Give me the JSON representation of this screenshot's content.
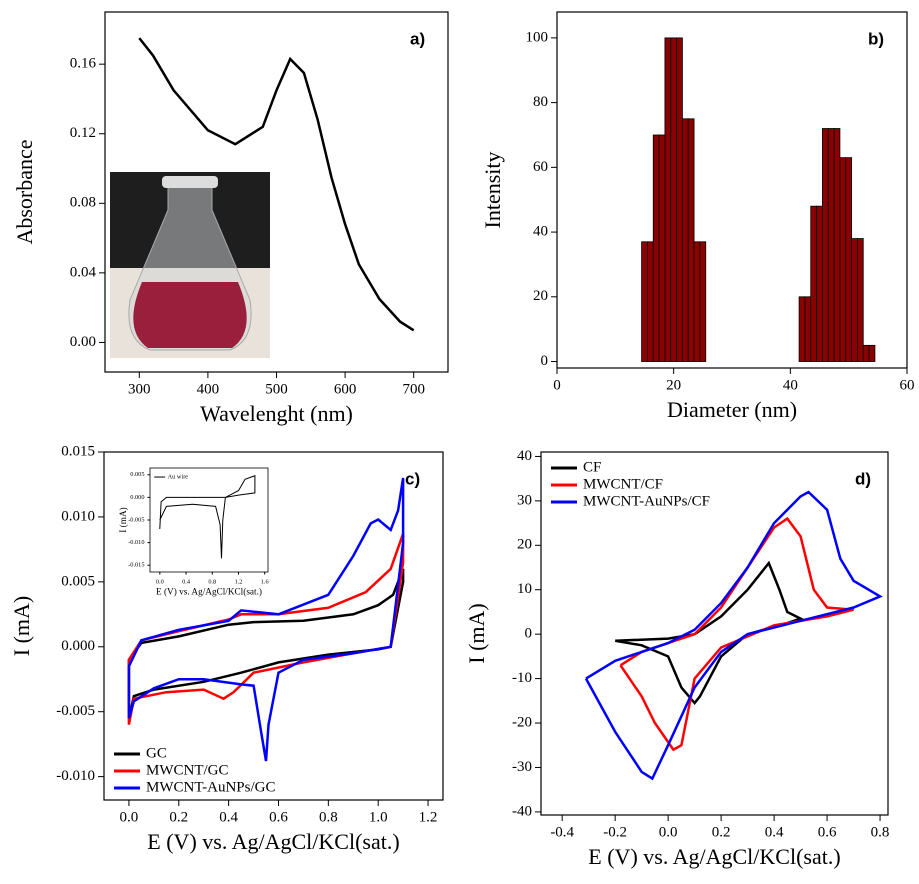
{
  "chart_data": [
    {
      "type": "line",
      "panel_label": "a)",
      "xlabel": "Wavelenght (nm)",
      "ylabel": "Absorbance",
      "color": "#000000",
      "x": [
        300,
        320,
        350,
        400,
        440,
        480,
        500,
        520,
        540,
        560,
        580,
        600,
        620,
        650,
        680,
        700
      ],
      "values": [
        0.175,
        0.165,
        0.145,
        0.122,
        0.114,
        0.124,
        0.145,
        0.163,
        0.155,
        0.128,
        0.095,
        0.068,
        0.045,
        0.025,
        0.012,
        0.007
      ],
      "xlim": [
        250,
        750
      ],
      "xticks": [
        300,
        400,
        500,
        600,
        700
      ],
      "ylim": [
        -0.017,
        0.19
      ],
      "yticks": [
        {
          "value": 0,
          "label": "0.00"
        },
        0.04,
        0.08,
        0.12,
        0.16
      ]
    },
    {
      "type": "bar",
      "panel_label": "b)",
      "xlabel": "Diameter (nm)",
      "ylabel": "Intensity",
      "color": "#8b0000",
      "x": [
        15,
        16,
        17,
        18,
        19,
        20,
        21,
        22,
        23,
        24,
        25,
        42,
        43,
        44,
        45,
        46,
        47,
        48,
        49,
        50,
        51,
        52,
        53,
        54
      ],
      "values": [
        37,
        37,
        70,
        70,
        100,
        100,
        100,
        75,
        75,
        37,
        37,
        20,
        20,
        48,
        48,
        72,
        72,
        72,
        63,
        63,
        38,
        38,
        5,
        5
      ],
      "xlim": [
        0,
        60
      ],
      "xticks": [
        0,
        20,
        40,
        60
      ],
      "ylim": [
        -2,
        108
      ],
      "yticks": [
        0,
        20,
        40,
        60,
        80,
        100
      ]
    },
    {
      "type": "line",
      "panel_label": "c)",
      "xlabel": "E (V) vs. Ag/AgCl/KCl(sat.)",
      "ylabel": "I (mA)",
      "legend": "lower left",
      "xlim": [
        -0.1,
        1.26
      ],
      "xticks": [
        {
          "value": 0,
          "label": "0.0"
        },
        0.2,
        0.4,
        0.6,
        0.8,
        {
          "value": 1,
          "label": "1.0"
        },
        1.2
      ],
      "ylim": [
        -0.0118,
        0.015
      ],
      "yticks": [
        {
          "value": -0.01,
          "label": "-0.010"
        },
        -0.005,
        {
          "value": 0,
          "label": "0.000"
        },
        0.005,
        {
          "value": 0.01,
          "label": "0.010"
        },
        0.015
      ],
      "series": [
        {
          "name": "GC",
          "color": "#000000",
          "x": [
            0,
            0,
            0.05,
            0.2,
            0.4,
            0.5,
            0.7,
            0.9,
            1.0,
            1.06,
            1.1,
            1.1,
            1.05,
            1.0,
            0.8,
            0.6,
            0.45,
            0.3,
            0.1,
            0.02,
            0
          ],
          "values": [
            -0.0045,
            -0.001,
            0.0003,
            0.0008,
            0.0017,
            0.0019,
            0.002,
            0.0025,
            0.0032,
            0.004,
            0.006,
            0.005,
            0,
            -0.0002,
            -0.0006,
            -0.0012,
            -0.002,
            -0.0027,
            -0.0033,
            -0.0038,
            -0.0055
          ]
        },
        {
          "name": "MWCNT/GC",
          "color": "#ff0000",
          "x": [
            0,
            0,
            0.05,
            0.2,
            0.4,
            0.45,
            0.6,
            0.8,
            0.95,
            1.05,
            1.1,
            1.1,
            1.05,
            0.9,
            0.7,
            0.5,
            0.42,
            0.38,
            0.3,
            0.15,
            0.02,
            0
          ],
          "values": [
            -0.006,
            -0.001,
            0.0005,
            0.0012,
            0.0021,
            0.0025,
            0.0025,
            0.003,
            0.0042,
            0.006,
            0.0087,
            0.0065,
            0,
            -0.0005,
            -0.0012,
            -0.002,
            -0.0035,
            -0.004,
            -0.0033,
            -0.0035,
            -0.004,
            -0.006
          ]
        },
        {
          "name": "MWCNT-AuNPs/GC",
          "color": "#0000ff",
          "x": [
            0,
            0,
            0.05,
            0.2,
            0.4,
            0.45,
            0.6,
            0.8,
            0.9,
            0.97,
            1.0,
            1.05,
            1.08,
            1.1,
            1.1,
            1.05,
            0.9,
            0.7,
            0.6,
            0.56,
            0.55,
            0.53,
            0.5,
            0.45,
            0.3,
            0.2,
            0.1,
            0.02,
            0
          ],
          "values": [
            -0.0055,
            -0.0015,
            0.0005,
            0.0013,
            0.002,
            0.0028,
            0.0025,
            0.004,
            0.007,
            0.0095,
            0.0098,
            0.009,
            0.0105,
            0.013,
            0.008,
            0,
            -0.0005,
            -0.001,
            -0.002,
            -0.006,
            -0.0088,
            -0.0065,
            -0.003,
            -0.0029,
            -0.0025,
            -0.0025,
            -0.0032,
            -0.0042,
            -0.0055
          ]
        }
      ]
    },
    {
      "type": "line",
      "panel_label": "d)",
      "xlabel": "E (V) vs. Ag/AgCl/KCl(sat.)",
      "ylabel": "I (mA)",
      "legend": "upper left",
      "xlim": [
        -0.48,
        0.83
      ],
      "xticks": [
        -0.4,
        -0.2,
        {
          "value": 0,
          "label": "0.0"
        },
        0.2,
        0.4,
        0.6,
        0.8
      ],
      "ylim": [
        -40.7,
        41
      ],
      "yticks": [
        -40,
        -30,
        -20,
        -10,
        0,
        10,
        20,
        30,
        40
      ],
      "series": [
        {
          "name": "CF",
          "color": "#000000",
          "x": [
            -0.2,
            0,
            0.1,
            0.2,
            0.3,
            0.38,
            0.42,
            0.45,
            0.5,
            0.45,
            0.3,
            0.2,
            0.12,
            0.1,
            0.05,
            0,
            -0.1,
            -0.2
          ],
          "values": [
            -1.5,
            -1,
            0,
            4,
            10,
            16,
            10,
            5,
            3.5,
            2.5,
            0,
            -5,
            -14,
            -15.5,
            -12,
            -5,
            -2.5,
            -1.5
          ]
        },
        {
          "name": "MWCNT/CF",
          "color": "#ff0000",
          "x": [
            -0.18,
            -0.1,
            0,
            0.1,
            0.2,
            0.3,
            0.4,
            0.45,
            0.5,
            0.55,
            0.6,
            0.7,
            0.6,
            0.4,
            0.2,
            0.1,
            0.05,
            0.02,
            -0.05,
            -0.1,
            -0.18
          ],
          "values": [
            -7,
            -4,
            -2,
            0,
            6,
            15,
            24,
            26,
            22,
            10,
            6,
            5.5,
            4,
            2,
            -3,
            -10,
            -25,
            -26,
            -20,
            -14,
            -7
          ]
        },
        {
          "name": "MWCNT-AuNPs/CF",
          "color": "#0000ff",
          "x": [
            -0.31,
            -0.2,
            0,
            0.1,
            0.2,
            0.3,
            0.4,
            0.5,
            0.53,
            0.6,
            0.65,
            0.7,
            0.8,
            0.7,
            0.5,
            0.3,
            0.2,
            0.1,
            0,
            -0.06,
            -0.1,
            -0.2,
            -0.31
          ],
          "values": [
            -10,
            -6,
            -2,
            1,
            7,
            15,
            25,
            31,
            32,
            28,
            17,
            12,
            8.5,
            6,
            3,
            0,
            -4,
            -12,
            -25,
            -32.5,
            -31,
            -22,
            -10
          ]
        }
      ]
    },
    {
      "type": "line",
      "xlabel": "E (V) vs. Ag/AgCl/KCl(sat.)",
      "ylabel": "I (mA)",
      "legend": "upper left",
      "xlim": [
        -0.15,
        1.65
      ],
      "xticks": [
        {
          "value": 0,
          "label": "0.0"
        },
        0.4,
        0.8,
        1.2,
        1.6
      ],
      "ylim": [
        -0.0165,
        0.0065
      ],
      "yticks": [
        -0.015,
        {
          "value": -0.01,
          "label": "-0.010"
        },
        -0.005,
        {
          "value": 0,
          "label": "0.000"
        },
        0.005
      ],
      "series": [
        {
          "name": "Au wire",
          "color": "#000000",
          "x": [
            0,
            0.02,
            0.1,
            0.5,
            1.0,
            1.2,
            1.3,
            1.45,
            1.45,
            1.2,
            1.0,
            0.96,
            0.94,
            0.92,
            0.85,
            0.5,
            0.1,
            0
          ],
          "values": [
            -0.007,
            -0.001,
            0,
            0,
            0,
            0.0015,
            0.004,
            0.0048,
            0.001,
            0.0005,
            0,
            -0.005,
            -0.0135,
            -0.006,
            -0.002,
            -0.0015,
            -0.002,
            -0.005
          ]
        }
      ]
    }
  ]
}
